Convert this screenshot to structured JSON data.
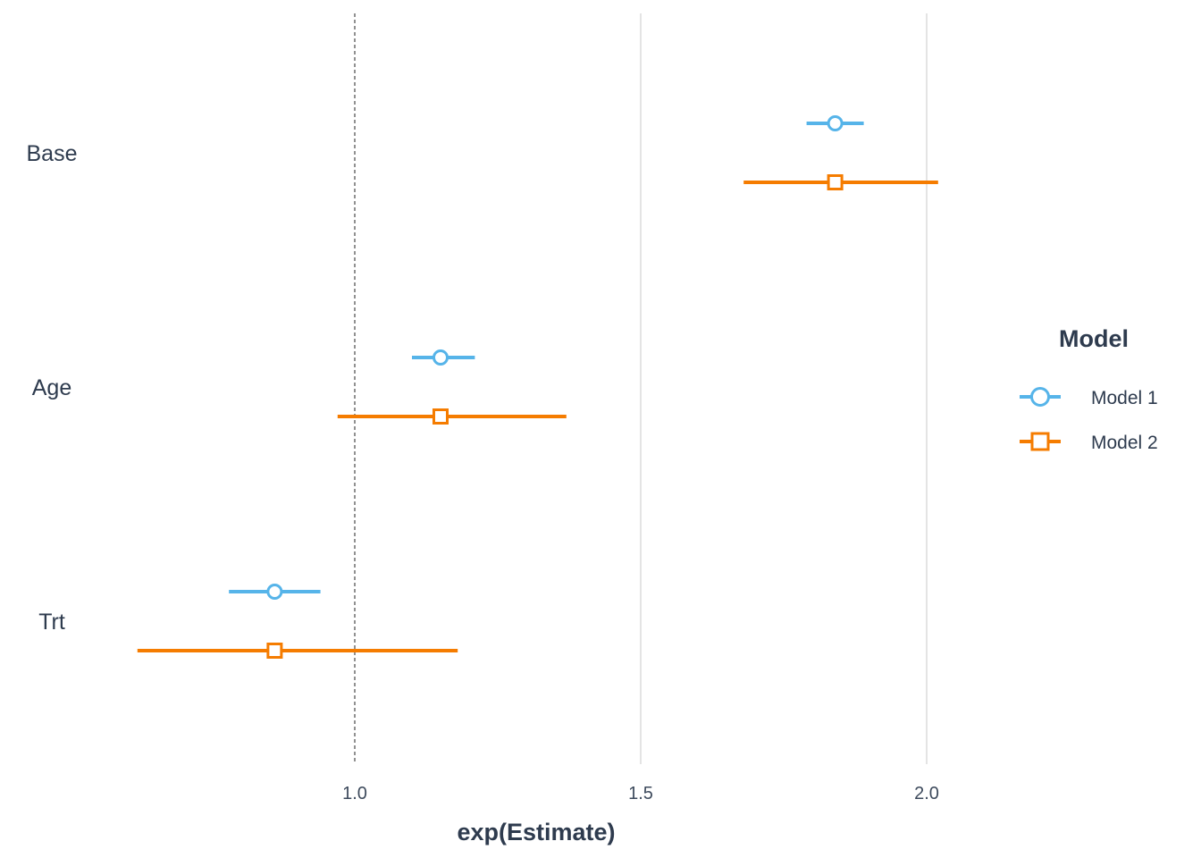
{
  "chart_data": {
    "type": "scatter",
    "subtype": "coefficient-plot",
    "title": "",
    "xlabel": "exp(Estimate)",
    "ylabel": "",
    "xlim": [
      0.5,
      2.4
    ],
    "x_ticks": [
      1.0,
      1.5,
      2.0
    ],
    "x_tick_labels": [
      "1.0",
      "1.5",
      "2.0"
    ],
    "reference_line": 1.0,
    "categories": [
      "Base",
      "Age",
      "Trt"
    ],
    "series": [
      {
        "name": "Model 1",
        "color": "#56b4e9",
        "marker": "circle",
        "estimate": [
          1.84,
          1.15,
          0.86
        ],
        "lower": [
          1.79,
          1.1,
          0.78
        ],
        "upper": [
          1.89,
          1.21,
          0.94
        ]
      },
      {
        "name": "Model 2",
        "color": "#f57c00",
        "marker": "square",
        "estimate": [
          1.84,
          1.15,
          0.86
        ],
        "lower": [
          1.68,
          0.97,
          0.62
        ],
        "upper": [
          2.02,
          1.37,
          1.18
        ]
      }
    ],
    "grid": "vertical-major",
    "legend": {
      "title": "Model",
      "placement": "right"
    }
  }
}
